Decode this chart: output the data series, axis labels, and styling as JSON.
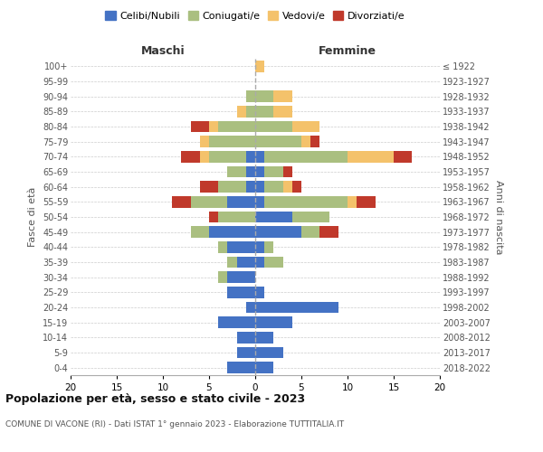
{
  "age_groups": [
    "100+",
    "95-99",
    "90-94",
    "85-89",
    "80-84",
    "75-79",
    "70-74",
    "65-69",
    "60-64",
    "55-59",
    "50-54",
    "45-49",
    "40-44",
    "35-39",
    "30-34",
    "25-29",
    "20-24",
    "15-19",
    "10-14",
    "5-9",
    "0-4"
  ],
  "birth_years": [
    "≤ 1922",
    "1923-1927",
    "1928-1932",
    "1933-1937",
    "1938-1942",
    "1943-1947",
    "1948-1952",
    "1953-1957",
    "1958-1962",
    "1963-1967",
    "1968-1972",
    "1973-1977",
    "1978-1982",
    "1983-1987",
    "1988-1992",
    "1993-1997",
    "1998-2002",
    "2003-2007",
    "2008-2012",
    "2013-2017",
    "2018-2022"
  ],
  "male": {
    "celibi": [
      0,
      0,
      0,
      0,
      0,
      0,
      1,
      1,
      1,
      3,
      0,
      5,
      3,
      2,
      3,
      3,
      1,
      4,
      2,
      2,
      3
    ],
    "coniugati": [
      0,
      0,
      1,
      1,
      4,
      5,
      4,
      2,
      3,
      4,
      4,
      2,
      1,
      1,
      1,
      0,
      0,
      0,
      0,
      0,
      0
    ],
    "vedovi": [
      0,
      0,
      0,
      1,
      1,
      1,
      1,
      0,
      0,
      0,
      0,
      0,
      0,
      0,
      0,
      0,
      0,
      0,
      0,
      0,
      0
    ],
    "divorziati": [
      0,
      0,
      0,
      0,
      2,
      0,
      2,
      0,
      2,
      2,
      1,
      0,
      0,
      0,
      0,
      0,
      0,
      0,
      0,
      0,
      0
    ]
  },
  "female": {
    "nubili": [
      0,
      0,
      0,
      0,
      0,
      0,
      1,
      1,
      1,
      1,
      4,
      5,
      1,
      1,
      0,
      1,
      9,
      4,
      2,
      3,
      2
    ],
    "coniugate": [
      0,
      0,
      2,
      2,
      4,
      5,
      9,
      2,
      2,
      9,
      4,
      2,
      1,
      2,
      0,
      0,
      0,
      0,
      0,
      0,
      0
    ],
    "vedove": [
      1,
      0,
      2,
      2,
      3,
      1,
      5,
      0,
      1,
      1,
      0,
      0,
      0,
      0,
      0,
      0,
      0,
      0,
      0,
      0,
      0
    ],
    "divorziate": [
      0,
      0,
      0,
      0,
      0,
      1,
      2,
      1,
      1,
      2,
      0,
      2,
      0,
      0,
      0,
      0,
      0,
      0,
      0,
      0,
      0
    ]
  },
  "colors": {
    "celibi": "#4472C4",
    "coniugati": "#AABF80",
    "vedovi": "#F4C26B",
    "divorziati": "#C0392B"
  },
  "title": "Popolazione per età, sesso e stato civile - 2023",
  "subtitle": "COMUNE DI VACONE (RI) - Dati ISTAT 1° gennaio 2023 - Elaborazione TUTTITALIA.IT",
  "xlabel_left": "Maschi",
  "xlabel_right": "Femmine",
  "ylabel_left": "Fasce di età",
  "ylabel_right": "Anni di nascita",
  "xlim": 20,
  "legend_labels": [
    "Celibi/Nubili",
    "Coniugati/e",
    "Vedovi/e",
    "Divorziati/e"
  ],
  "background_color": "#ffffff",
  "grid_color": "#cccccc"
}
